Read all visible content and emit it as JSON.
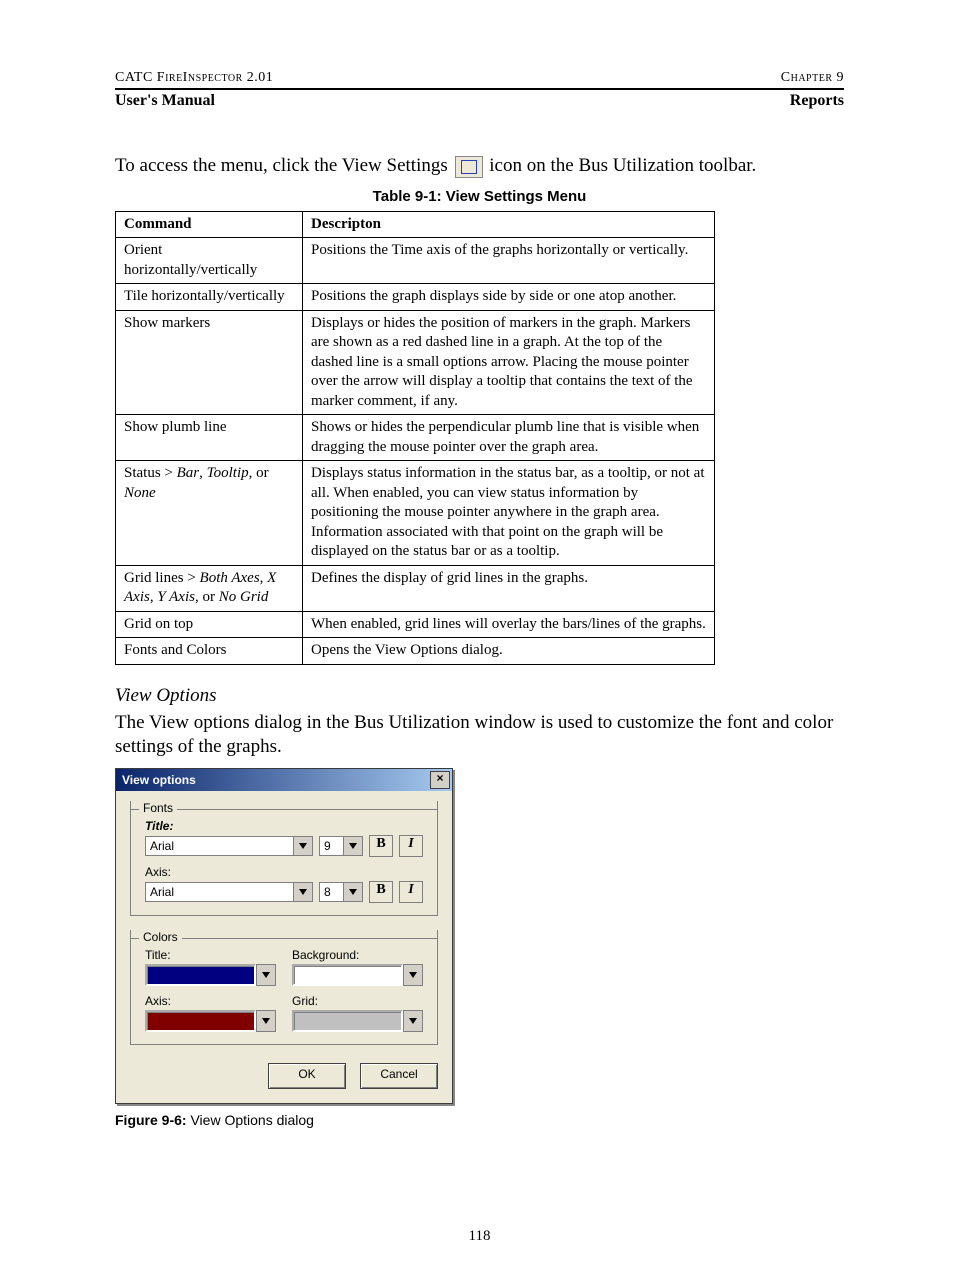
{
  "header": {
    "left_small": "CATC FireInspector 2.01",
    "right_small": "Chapter 9",
    "left_bold": "User's Manual",
    "right_bold": "Reports"
  },
  "intro_before_icon": "To access the menu, click the View Settings",
  "intro_after_icon": "icon on the Bus Utilization toolbar.",
  "table": {
    "caption": "Table 9-1: View Settings Menu",
    "columns": [
      "Command",
      "Descripton"
    ],
    "rows": [
      {
        "cmd_html": "Orient horizontally/vertically",
        "desc": "Positions the Time axis of the graphs horizontally or vertically."
      },
      {
        "cmd_html": "Tile horizontally/vertically",
        "desc": "Positions the graph displays side by side or one atop another."
      },
      {
        "cmd_html": "Show markers",
        "desc": "Displays or hides the position of markers in the graph. Markers are shown as a red dashed line in a graph. At the top of the dashed line is a small options arrow. Placing the mouse pointer over the arrow will display a tooltip that contains the text of the marker comment, if any."
      },
      {
        "cmd_html": "Show plumb line",
        "desc": "Shows or hides the perpendicular plumb line that is visible when dragging the mouse pointer over the graph area."
      },
      {
        "cmd_html": "Status > <i>Bar</i>, <i>Tooltip</i>, or <i>None</i>",
        "desc": "Displays status information in the status bar, as a tooltip, or not at all. When enabled, you can view status information by positioning the mouse pointer anywhere in the graph area. Information associated with that point on the graph will be displayed on the status bar or as a tooltip."
      },
      {
        "cmd_html": "Grid lines > <i>Both Axes</i>, <i>X Axis</i>, <i>Y Axis</i>, or <i>No Grid</i>",
        "desc": "Defines the display of grid lines in the graphs."
      },
      {
        "cmd_html": "Grid on top",
        "desc": "When enabled, grid lines will overlay the bars/lines of the graphs."
      },
      {
        "cmd_html": "Fonts and Colors",
        "desc": "Opens the View Options dialog."
      }
    ]
  },
  "section_subtitle": "View Options",
  "section_text": "The View options dialog in the Bus Utilization window is used to customize the font and color settings of the graphs.",
  "dialog": {
    "title": "View options",
    "close": "×",
    "fonts_group": "Fonts",
    "title_label": "Title:",
    "axis_label": "Axis:",
    "title_font": "Arial",
    "title_size": "9",
    "axis_font": "Arial",
    "axis_size": "8",
    "bold": "B",
    "italic": "I",
    "colors_group": "Colors",
    "c_title": "Title:",
    "c_background": "Background:",
    "c_axis": "Axis:",
    "c_grid": "Grid:",
    "ok": "OK",
    "cancel": "Cancel"
  },
  "figure_caption_bold": "Figure 9-6:",
  "figure_caption_rest": " View Options dialog",
  "page_number": "118"
}
